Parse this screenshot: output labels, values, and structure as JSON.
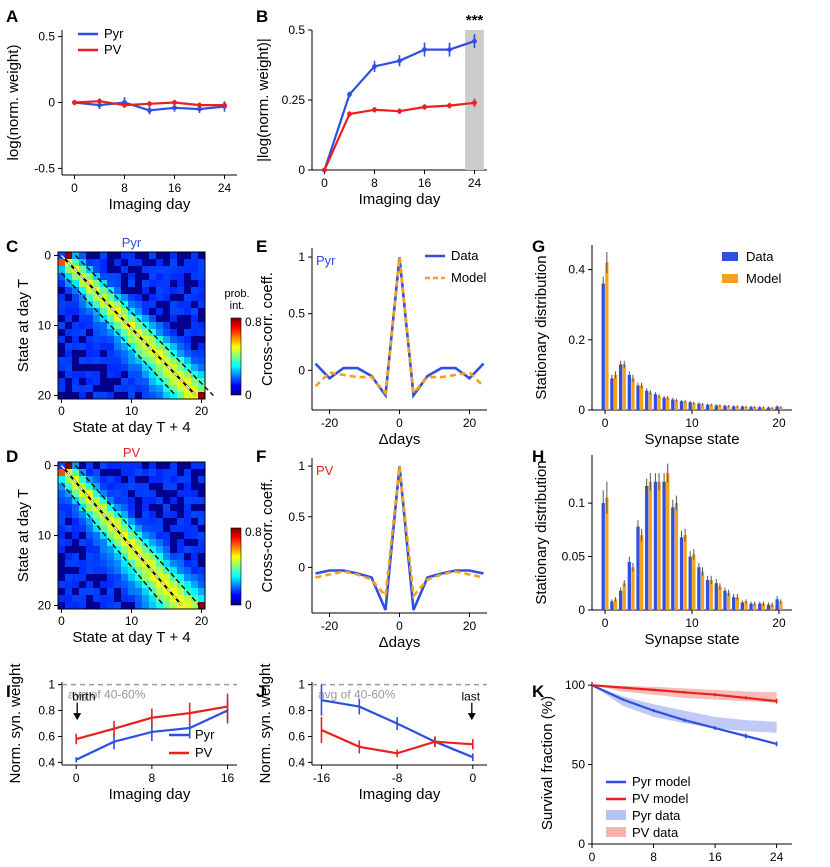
{
  "colors": {
    "pyr": "#2f4fe3",
    "pv": "#e8211f",
    "model": "#f4a21a",
    "grey": "#999999",
    "shade": "#cccccc"
  },
  "chart_data": [
    {
      "id": "A",
      "type": "line",
      "title": "",
      "xlabel": "Imaging day",
      "ylabel": "log(norm. weight)",
      "xlim": [
        -2,
        26
      ],
      "ylim": [
        -0.55,
        0.55
      ],
      "xticks": [
        0,
        8,
        16,
        24
      ],
      "xticklabels": [
        "0",
        "8",
        "16",
        "24"
      ],
      "yticks": [
        -0.5,
        0,
        0.5
      ],
      "yticklabels": [
        "-0.5",
        "0",
        "0.5"
      ],
      "legend": [
        "Pyr",
        "PV"
      ],
      "series": [
        {
          "name": "Pyr",
          "color": "pyr",
          "x": [
            0,
            4,
            8,
            12,
            16,
            20,
            24
          ],
          "y": [
            0,
            -0.02,
            0.0,
            -0.06,
            -0.04,
            -0.05,
            -0.03
          ],
          "err": [
            0.02,
            0.03,
            0.04,
            0.03,
            0.03,
            0.03,
            0.04
          ]
        },
        {
          "name": "PV",
          "color": "pv",
          "x": [
            0,
            4,
            8,
            12,
            16,
            20,
            24
          ],
          "y": [
            0,
            0.01,
            -0.02,
            -0.01,
            0.0,
            -0.02,
            -0.02
          ],
          "err": [
            0.01,
            0.02,
            0.02,
            0.02,
            0.02,
            0.02,
            0.02
          ]
        }
      ]
    },
    {
      "id": "B",
      "type": "line",
      "title": "",
      "xlabel": "Imaging day",
      "ylabel": "|log(norm. weight)|",
      "xlim": [
        -2,
        26
      ],
      "ylim": [
        0,
        0.5
      ],
      "xticks": [
        0,
        8,
        16,
        24
      ],
      "xticklabels": [
        "0",
        "8",
        "16",
        "24"
      ],
      "yticks": [
        0,
        0.25,
        0.5
      ],
      "yticklabels": [
        "0",
        "0.25",
        "0.5"
      ],
      "shade": [
        22.5,
        25.5
      ],
      "annotation": "***",
      "series": [
        {
          "name": "Pyr",
          "color": "pyr",
          "x": [
            0,
            4,
            8,
            12,
            16,
            20,
            24
          ],
          "y": [
            0,
            0.27,
            0.37,
            0.39,
            0.43,
            0.43,
            0.46
          ],
          "err": [
            0.005,
            0.01,
            0.02,
            0.02,
            0.025,
            0.025,
            0.025
          ]
        },
        {
          "name": "PV",
          "color": "pv",
          "x": [
            0,
            4,
            8,
            12,
            16,
            20,
            24
          ],
          "y": [
            0,
            0.2,
            0.215,
            0.21,
            0.225,
            0.23,
            0.24
          ],
          "err": [
            0.005,
            0.01,
            0.01,
            0.01,
            0.01,
            0.01,
            0.015
          ]
        }
      ]
    },
    {
      "id": "C",
      "type": "heatmap",
      "title": "Pyr",
      "xlabel": "State at day T + 4",
      "ylabel": "State at day T",
      "xticks": [
        "0",
        "10",
        "20"
      ],
      "yticks": [
        "0",
        "10",
        "20"
      ],
      "colorbar_label": "prob. int.",
      "colorbar_ticks": [
        "0.8",
        "0"
      ],
      "vmax": 0.8
    },
    {
      "id": "D",
      "type": "heatmap",
      "title": "PV",
      "xlabel": "State at day T + 4",
      "ylabel": "State at day T",
      "xticks": [
        "0",
        "10",
        "20"
      ],
      "yticks": [
        "0",
        "10",
        "20"
      ],
      "colorbar_label": "",
      "colorbar_ticks": [
        "0.8",
        "0"
      ],
      "vmax": 0.8
    },
    {
      "id": "E",
      "type": "line",
      "title": "",
      "panel_text": "Pyr",
      "xlabel": "Δdays",
      "ylabel": "Cross-corr. coeff.",
      "xlim": [
        -25,
        25
      ],
      "ylim": [
        -0.35,
        1.08
      ],
      "xticks": [
        -20,
        0,
        20
      ],
      "xticklabels": [
        "-20",
        "0",
        "20"
      ],
      "yticks": [
        0,
        0.5,
        1
      ],
      "yticklabels": [
        "0",
        "0.5",
        "1"
      ],
      "legend": [
        "Data",
        "Model"
      ],
      "series": [
        {
          "name": "Data",
          "color": "pyr",
          "style": "solid",
          "x": [
            -24,
            -20,
            -16,
            -12,
            -8,
            -4,
            0,
            4,
            8,
            12,
            16,
            20,
            24
          ],
          "y": [
            0.06,
            -0.07,
            0.02,
            0.02,
            -0.05,
            -0.22,
            1.0,
            -0.22,
            -0.05,
            0.02,
            0.02,
            -0.07,
            0.06
          ]
        },
        {
          "name": "Model",
          "color": "model",
          "style": "dashed",
          "x": [
            -24,
            -20,
            -16,
            -12,
            -8,
            -4,
            0,
            4,
            8,
            12,
            16,
            20,
            24
          ],
          "y": [
            -0.14,
            -0.02,
            -0.04,
            -0.06,
            -0.06,
            -0.2,
            1.0,
            -0.2,
            -0.06,
            -0.06,
            -0.04,
            -0.02,
            -0.14
          ]
        }
      ]
    },
    {
      "id": "F",
      "type": "line",
      "title": "",
      "panel_text": "PV",
      "xlabel": "Δdays",
      "ylabel": "Cross-corr. coeff.",
      "xlim": [
        -25,
        25
      ],
      "ylim": [
        -0.45,
        1.08
      ],
      "xticks": [
        -20,
        0,
        20
      ],
      "xticklabels": [
        "-20",
        "0",
        "20"
      ],
      "yticks": [
        0,
        0.5,
        1
      ],
      "yticklabels": [
        "0",
        "0.5",
        "1"
      ],
      "series": [
        {
          "name": "Data",
          "color": "pyr",
          "style": "solid",
          "x": [
            -24,
            -20,
            -16,
            -12,
            -8,
            -4,
            0,
            4,
            8,
            12,
            16,
            20,
            24
          ],
          "y": [
            -0.06,
            -0.03,
            -0.03,
            -0.06,
            -0.1,
            -0.42,
            1.0,
            -0.42,
            -0.1,
            -0.06,
            -0.03,
            -0.03,
            -0.06
          ]
        },
        {
          "name": "Model",
          "color": "model",
          "style": "dashed",
          "x": [
            -24,
            -20,
            -16,
            -12,
            -8,
            -4,
            0,
            4,
            8,
            12,
            16,
            20,
            24
          ],
          "y": [
            -0.1,
            -0.07,
            -0.04,
            -0.07,
            -0.12,
            -0.28,
            1.0,
            -0.28,
            -0.12,
            -0.07,
            -0.04,
            -0.07,
            -0.1
          ]
        }
      ]
    },
    {
      "id": "G",
      "type": "bar",
      "title": "",
      "xlabel": "Synapse state",
      "ylabel": "Stationary distribution",
      "xlim": [
        -1.5,
        21.5
      ],
      "ylim": [
        0,
        0.47
      ],
      "xticks": [
        0,
        10,
        20
      ],
      "xticklabels": [
        "0",
        "10",
        "20"
      ],
      "yticks": [
        0,
        0.2,
        0.4
      ],
      "yticklabels": [
        "0",
        "0.2",
        "0.4"
      ],
      "legend": [
        "Data",
        "Model"
      ],
      "categories": [
        0,
        1,
        2,
        3,
        4,
        5,
        6,
        7,
        8,
        9,
        10,
        11,
        12,
        13,
        14,
        15,
        16,
        17,
        18,
        19,
        20
      ],
      "series": [
        {
          "name": "Data",
          "color": "pyr",
          "values": [
            0.36,
            0.09,
            0.13,
            0.1,
            0.07,
            0.055,
            0.045,
            0.035,
            0.03,
            0.025,
            0.022,
            0.018,
            0.015,
            0.013,
            0.012,
            0.01,
            0.01,
            0.009,
            0.008,
            0.007,
            0.01
          ],
          "err": [
            0.02,
            0.01,
            0.01,
            0.01,
            0.008,
            0.007,
            0.006,
            0.005,
            0.005,
            0.004,
            0.004,
            0.004,
            0.003,
            0.003,
            0.003,
            0.003,
            0.003,
            0.003,
            0.003,
            0.003,
            0.003
          ]
        },
        {
          "name": "Model",
          "color": "model",
          "values": [
            0.42,
            0.1,
            0.13,
            0.09,
            0.07,
            0.05,
            0.04,
            0.035,
            0.028,
            0.024,
            0.02,
            0.017,
            0.015,
            0.013,
            0.011,
            0.01,
            0.009,
            0.008,
            0.007,
            0.006,
            0.008
          ],
          "err": [
            0.03,
            0.01,
            0.01,
            0.01,
            0.008,
            0.006,
            0.005,
            0.005,
            0.004,
            0.004,
            0.004,
            0.003,
            0.003,
            0.003,
            0.003,
            0.003,
            0.003,
            0.003,
            0.003,
            0.003,
            0.003
          ]
        }
      ]
    },
    {
      "id": "H",
      "type": "bar",
      "title": "",
      "xlabel": "Synapse state",
      "ylabel": "Stationary distribution",
      "xlim": [
        -1.5,
        21.5
      ],
      "ylim": [
        0,
        0.145
      ],
      "xticks": [
        0,
        10,
        20
      ],
      "xticklabels": [
        "0",
        "10",
        "20"
      ],
      "yticks": [
        0,
        0.05,
        0.1
      ],
      "yticklabels": [
        "0",
        "0.05",
        "0.1"
      ],
      "categories": [
        0,
        1,
        2,
        3,
        4,
        5,
        6,
        7,
        8,
        9,
        10,
        11,
        12,
        13,
        14,
        15,
        16,
        17,
        18,
        19,
        20
      ],
      "series": [
        {
          "name": "Data",
          "color": "pyr",
          "values": [
            0.1,
            0.008,
            0.018,
            0.045,
            0.078,
            0.116,
            0.12,
            0.12,
            0.096,
            0.068,
            0.05,
            0.04,
            0.028,
            0.025,
            0.018,
            0.012,
            0.007,
            0.006,
            0.006,
            0.005,
            0.01
          ],
          "err": [
            0.012,
            0.002,
            0.003,
            0.005,
            0.006,
            0.007,
            0.008,
            0.008,
            0.007,
            0.006,
            0.005,
            0.004,
            0.004,
            0.004,
            0.003,
            0.003,
            0.002,
            0.002,
            0.002,
            0.002,
            0.003
          ]
        },
        {
          "name": "Model",
          "color": "model",
          "values": [
            0.105,
            0.01,
            0.025,
            0.04,
            0.07,
            0.12,
            0.12,
            0.128,
            0.1,
            0.07,
            0.052,
            0.036,
            0.028,
            0.022,
            0.016,
            0.012,
            0.008,
            0.006,
            0.006,
            0.005,
            0.008
          ],
          "err": [
            0.015,
            0.002,
            0.003,
            0.004,
            0.006,
            0.008,
            0.008,
            0.009,
            0.007,
            0.006,
            0.005,
            0.004,
            0.004,
            0.003,
            0.003,
            0.003,
            0.002,
            0.002,
            0.002,
            0.002,
            0.002
          ]
        }
      ]
    },
    {
      "id": "I",
      "type": "line",
      "title": "",
      "xlabel": "Imaging day",
      "ylabel": "Norm. syn. weight",
      "xlim": [
        -1.5,
        17
      ],
      "ylim": [
        0.38,
        1.02
      ],
      "xticks": [
        0,
        8,
        16
      ],
      "xticklabels": [
        "0",
        "8",
        "16"
      ],
      "yticks": [
        0.4,
        0.6,
        0.8,
        1
      ],
      "yticklabels": [
        "0.4",
        "0.6",
        "0.8",
        "1"
      ],
      "refline": 1,
      "refline_label": "avg of 40-60%",
      "marker_label": "birth",
      "marker_x": 0,
      "legend": [
        "Pyr",
        "PV"
      ],
      "series": [
        {
          "name": "Pyr",
          "color": "pyr",
          "x": [
            0,
            4,
            8,
            12,
            16
          ],
          "y": [
            0.42,
            0.56,
            0.635,
            0.665,
            0.8
          ],
          "err": [
            0.02,
            0.06,
            0.07,
            0.08,
            0.1
          ]
        },
        {
          "name": "PV",
          "color": "pv",
          "x": [
            0,
            4,
            8,
            12,
            16
          ],
          "y": [
            0.58,
            0.66,
            0.745,
            0.78,
            0.83
          ],
          "err": [
            0.04,
            0.06,
            0.07,
            0.08,
            0.1
          ]
        }
      ]
    },
    {
      "id": "J",
      "type": "line",
      "title": "",
      "xlabel": "Imaging day",
      "ylabel": "Norm. syn. weight",
      "xlim": [
        -17,
        1.5
      ],
      "ylim": [
        0.38,
        1.02
      ],
      "xticks": [
        -16,
        -8,
        0
      ],
      "xticklabels": [
        "-16",
        "-8",
        "0"
      ],
      "yticks": [
        0.4,
        0.6,
        0.8,
        1
      ],
      "yticklabels": [
        "0.4",
        "0.6",
        "0.8",
        "1"
      ],
      "refline": 1,
      "refline_label": "avg of 40-60%",
      "marker_label": "last",
      "marker_x": 0,
      "series": [
        {
          "name": "Pyr",
          "color": "pyr",
          "x": [
            -16,
            -12,
            -8,
            -4,
            0
          ],
          "y": [
            0.88,
            0.83,
            0.7,
            0.56,
            0.44
          ],
          "err": [
            0.12,
            0.06,
            0.05,
            0.04,
            0.03
          ]
        },
        {
          "name": "PV",
          "color": "pv",
          "x": [
            -16,
            -12,
            -8,
            -4,
            0
          ],
          "y": [
            0.65,
            0.52,
            0.47,
            0.56,
            0.54
          ],
          "err": [
            0.1,
            0.05,
            0.03,
            0.04,
            0.04
          ]
        }
      ]
    },
    {
      "id": "K",
      "type": "line",
      "title": "",
      "xlabel": "Imaging day",
      "ylabel": "Survival fraction (%)",
      "xlim": [
        0,
        26
      ],
      "ylim": [
        0,
        102
      ],
      "xticks": [
        0,
        8,
        16,
        24
      ],
      "xticklabels": [
        "0",
        "8",
        "16",
        "24"
      ],
      "yticks": [
        0,
        50,
        100
      ],
      "yticklabels": [
        "0",
        "50",
        "100"
      ],
      "legend": [
        "Pyr model",
        "PV model",
        "Pyr data",
        "PV data"
      ],
      "series": [
        {
          "name": "Pyr model",
          "color": "pyr",
          "x": [
            0,
            4,
            8,
            12,
            16,
            20,
            24
          ],
          "y": [
            100,
            91,
            84,
            78,
            73,
            68,
            63
          ],
          "err": [
            0,
            0.8,
            1,
            1,
            1.2,
            1.5,
            1.5
          ]
        },
        {
          "name": "PV model",
          "color": "pv",
          "x": [
            0,
            4,
            8,
            12,
            16,
            20,
            24
          ],
          "y": [
            100,
            98.5,
            97,
            95.5,
            94,
            92,
            90
          ],
          "err": [
            0,
            0.5,
            0.8,
            0.8,
            1,
            1,
            1.5
          ]
        }
      ],
      "bands": [
        {
          "name": "Pyr data",
          "color": "pyr",
          "x": [
            0,
            4,
            8,
            12,
            16,
            20,
            24
          ],
          "lo": [
            100,
            87,
            80,
            76,
            73,
            71,
            70
          ],
          "hi": [
            100,
            93,
            88,
            84,
            80,
            78,
            77
          ]
        },
        {
          "name": "PV data",
          "color": "pv",
          "x": [
            0,
            4,
            8,
            12,
            16,
            20,
            24
          ],
          "lo": [
            100,
            96,
            94,
            92,
            91,
            90,
            89
          ],
          "hi": [
            100,
            99.5,
            99,
            98,
            97,
            96,
            95.5
          ]
        }
      ]
    }
  ]
}
